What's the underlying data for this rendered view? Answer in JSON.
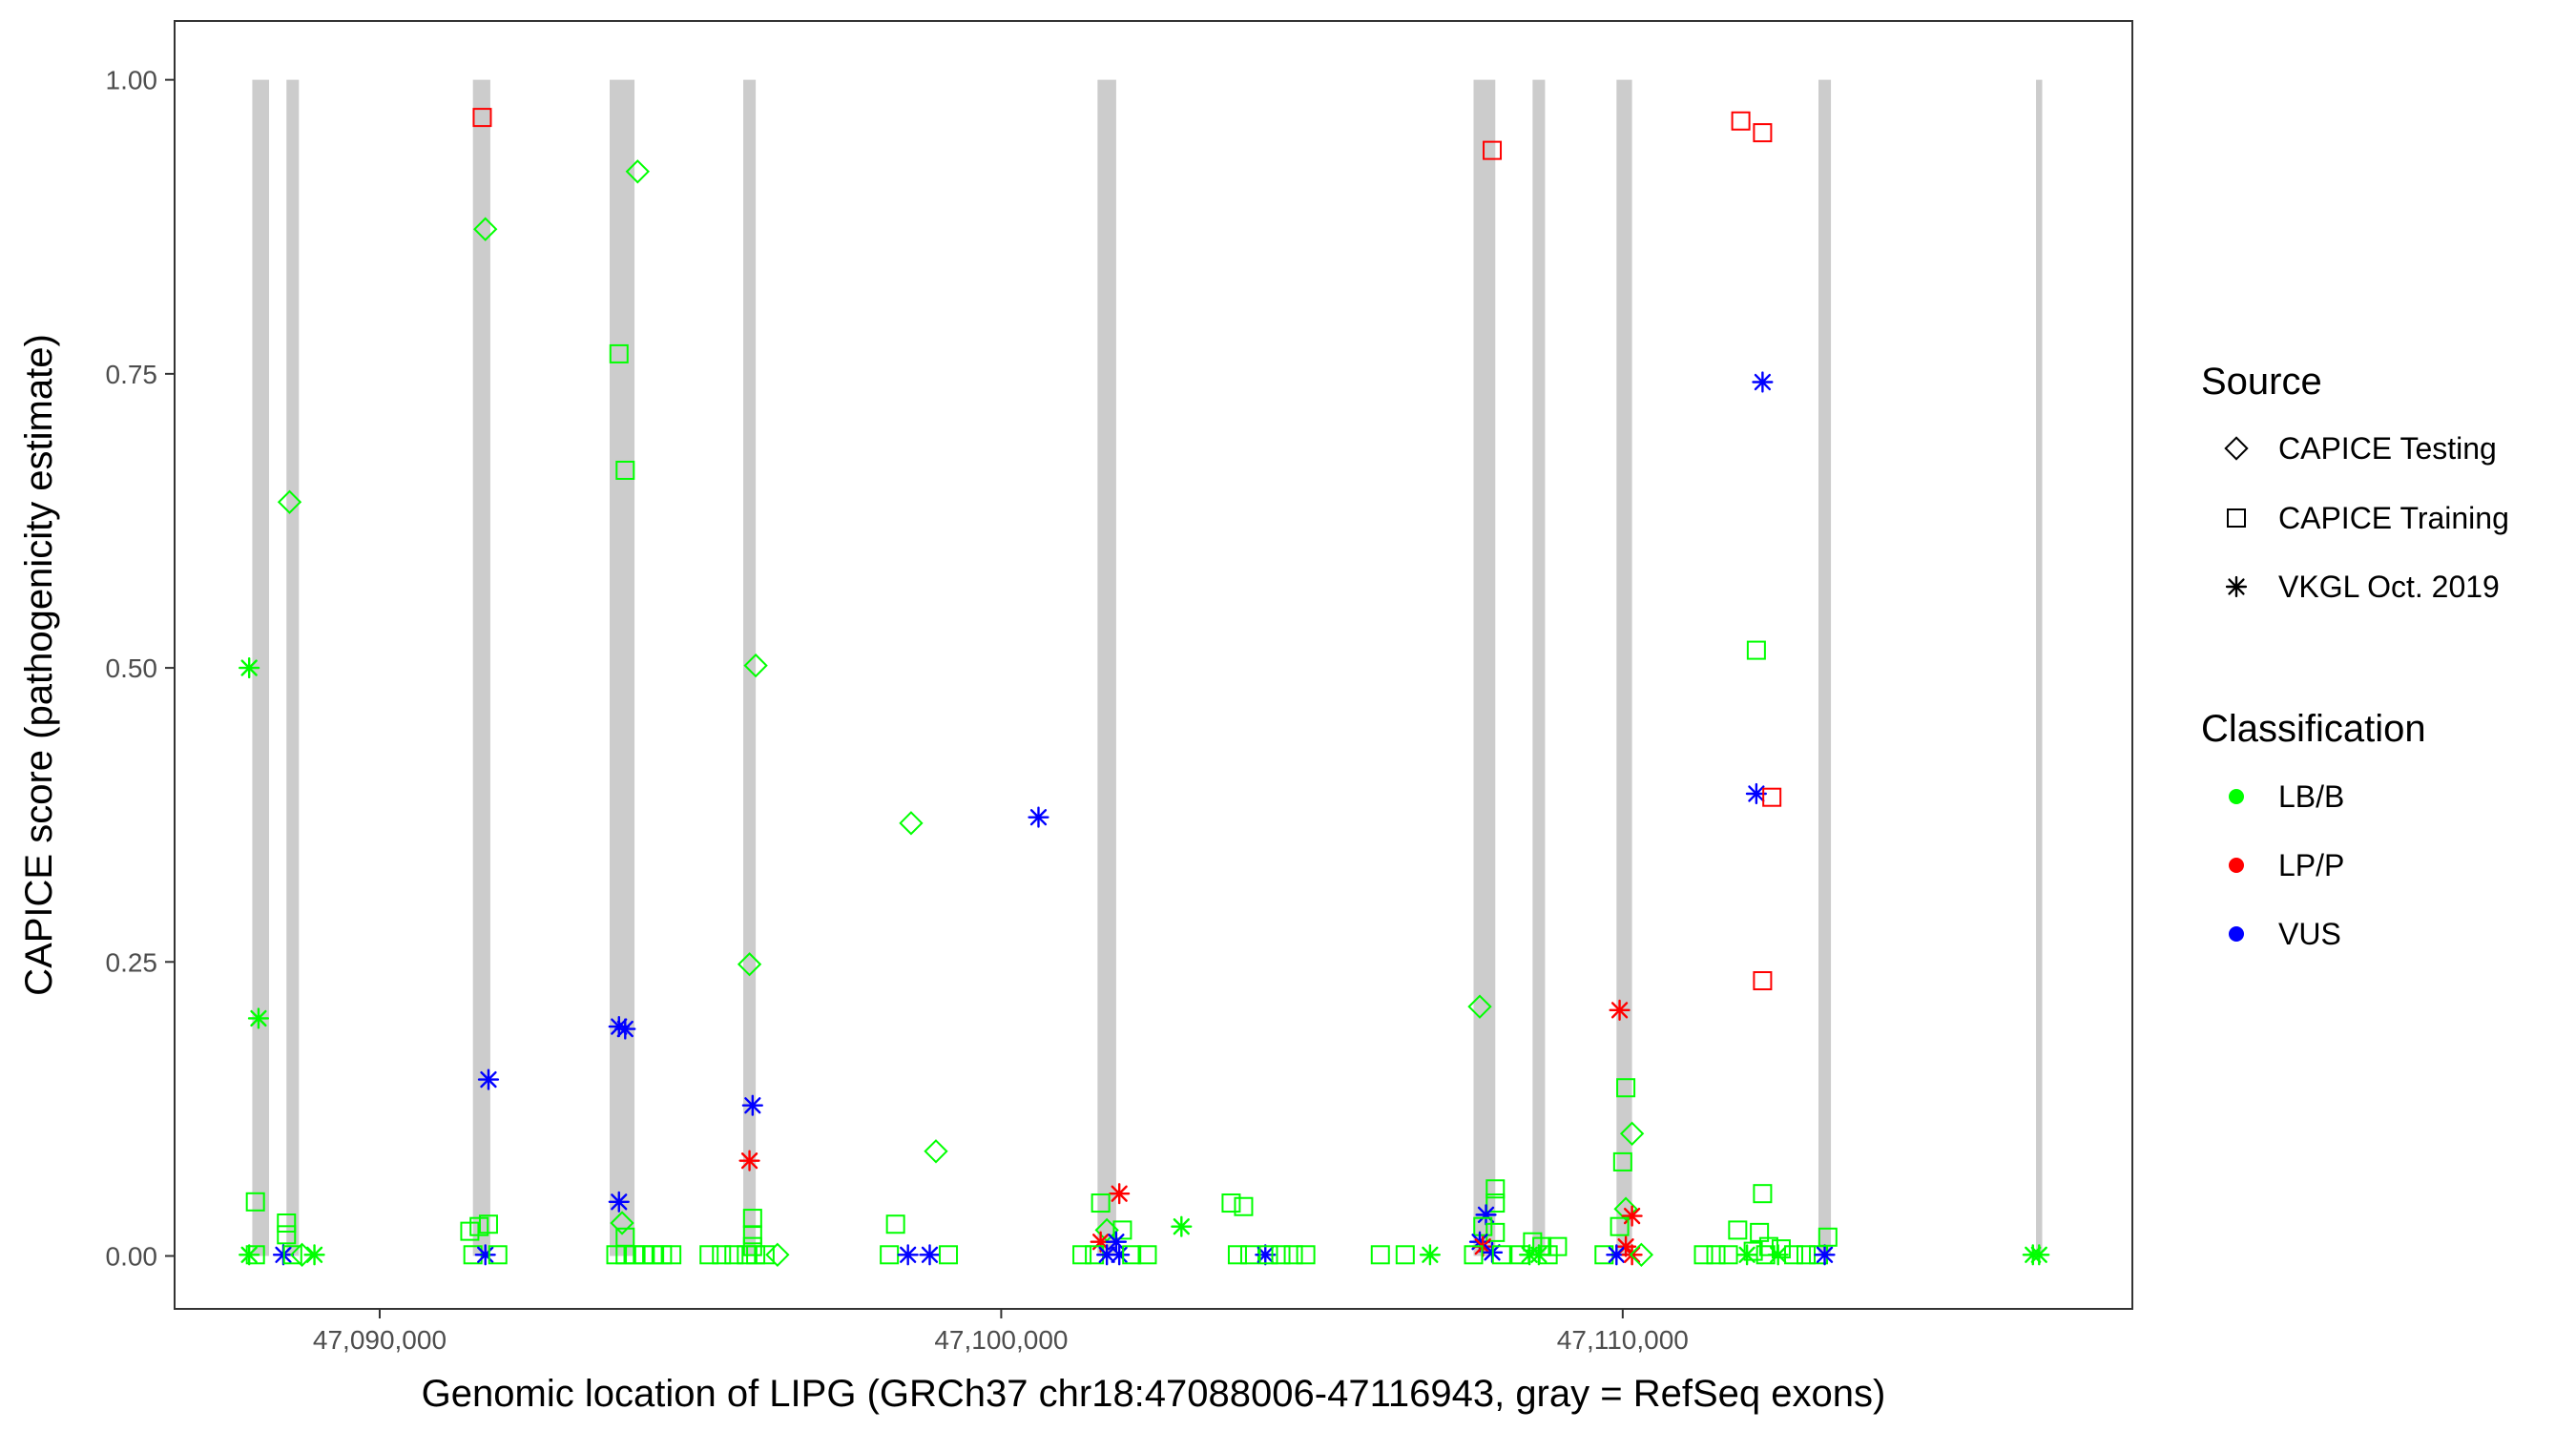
{
  "chart_data": {
    "type": "scatter",
    "xlabel": "Genomic location of LIPG (GRCh37 chr18:47088006-47116943, gray = RefSeq exons)",
    "ylabel": "CAPICE score (pathogenicity estimate)",
    "xlim": [
      47086700,
      47118200
    ],
    "ylim": [
      -0.045,
      1.05
    ],
    "x_ticks": [
      47090000,
      47100000,
      47110000
    ],
    "x_tick_labels": [
      "47,090,000",
      "47,100,000",
      "47,110,000"
    ],
    "y_ticks": [
      0,
      0.25,
      0.5,
      0.75,
      1.0
    ],
    "y_tick_labels": [
      "0.00",
      "0.25",
      "0.50",
      "0.75",
      "1.00"
    ],
    "grid": false,
    "legend_placement": "right",
    "exons": [
      [
        47087950,
        47088220
      ],
      [
        47088500,
        47088700
      ],
      [
        47091500,
        47091780
      ],
      [
        47093700,
        47094100
      ],
      [
        47095850,
        47096050
      ],
      [
        47101550,
        47101850
      ],
      [
        47107600,
        47107950
      ],
      [
        47108550,
        47108750
      ],
      [
        47109900,
        47110150
      ],
      [
        47113150,
        47113350
      ],
      [
        47116650,
        47116750
      ]
    ],
    "legends": {
      "source": {
        "title": "Source",
        "entries": [
          {
            "label": "CAPICE Testing",
            "shape": "diamond"
          },
          {
            "label": "CAPICE Training",
            "shape": "square"
          },
          {
            "label": "VKGL Oct. 2019",
            "shape": "asterisk"
          }
        ]
      },
      "classification": {
        "title": "Classification",
        "entries": [
          {
            "label": "LB/B",
            "color": "#00ff00"
          },
          {
            "label": "LP/P",
            "color": "#ff0000"
          },
          {
            "label": "VUS",
            "color": "#0000ff"
          }
        ]
      }
    },
    "colors": {
      "LB/B": "#00ff00",
      "LP/P": "#ff0000",
      "VUS": "#0000ff"
    },
    "points": [
      {
        "x": 47087900,
        "y": 0.5,
        "shape": "asterisk",
        "cls": "LB/B"
      },
      {
        "x": 47088050,
        "y": 0.202,
        "shape": "asterisk",
        "cls": "LB/B"
      },
      {
        "x": 47088000,
        "y": 0.046,
        "shape": "square",
        "cls": "LB/B"
      },
      {
        "x": 47087900,
        "y": 0.001,
        "shape": "asterisk",
        "cls": "LB/B"
      },
      {
        "x": 47088000,
        "y": 0.001,
        "shape": "square",
        "cls": "LB/B"
      },
      {
        "x": 47088550,
        "y": 0.641,
        "shape": "diamond",
        "cls": "LB/B"
      },
      {
        "x": 47088500,
        "y": 0.028,
        "shape": "square",
        "cls": "LB/B"
      },
      {
        "x": 47088500,
        "y": 0.018,
        "shape": "square",
        "cls": "LB/B"
      },
      {
        "x": 47088450,
        "y": 0.001,
        "shape": "asterisk",
        "cls": "VUS"
      },
      {
        "x": 47088600,
        "y": 0.001,
        "shape": "square",
        "cls": "LB/B"
      },
      {
        "x": 47088750,
        "y": 0.001,
        "shape": "diamond",
        "cls": "LB/B"
      },
      {
        "x": 47088950,
        "y": 0.001,
        "shape": "asterisk",
        "cls": "LB/B"
      },
      {
        "x": 47091650,
        "y": 0.968,
        "shape": "square",
        "cls": "LP/P"
      },
      {
        "x": 47091700,
        "y": 0.873,
        "shape": "diamond",
        "cls": "LB/B"
      },
      {
        "x": 47091750,
        "y": 0.15,
        "shape": "asterisk",
        "cls": "VUS"
      },
      {
        "x": 47091450,
        "y": 0.021,
        "shape": "square",
        "cls": "LB/B"
      },
      {
        "x": 47091600,
        "y": 0.025,
        "shape": "square",
        "cls": "LB/B"
      },
      {
        "x": 47091750,
        "y": 0.027,
        "shape": "square",
        "cls": "LB/B"
      },
      {
        "x": 47091500,
        "y": 0.001,
        "shape": "square",
        "cls": "LB/B"
      },
      {
        "x": 47091700,
        "y": 0.001,
        "shape": "asterisk",
        "cls": "VUS"
      },
      {
        "x": 47091900,
        "y": 0.001,
        "shape": "square",
        "cls": "LB/B"
      },
      {
        "x": 47094150,
        "y": 0.922,
        "shape": "diamond",
        "cls": "LB/B"
      },
      {
        "x": 47093850,
        "y": 0.767,
        "shape": "square",
        "cls": "LB/B"
      },
      {
        "x": 47093950,
        "y": 0.668,
        "shape": "square",
        "cls": "LB/B"
      },
      {
        "x": 47093850,
        "y": 0.195,
        "shape": "asterisk",
        "cls": "VUS"
      },
      {
        "x": 47093950,
        "y": 0.193,
        "shape": "asterisk",
        "cls": "VUS"
      },
      {
        "x": 47093850,
        "y": 0.046,
        "shape": "asterisk",
        "cls": "VUS"
      },
      {
        "x": 47093900,
        "y": 0.028,
        "shape": "diamond",
        "cls": "LB/B"
      },
      {
        "x": 47093950,
        "y": 0.016,
        "shape": "square",
        "cls": "LB/B"
      },
      {
        "x": 47093800,
        "y": 0.001,
        "shape": "square",
        "cls": "LB/B"
      },
      {
        "x": 47093950,
        "y": 0.001,
        "shape": "square",
        "cls": "LB/B"
      },
      {
        "x": 47094100,
        "y": 0.001,
        "shape": "square",
        "cls": "LB/B"
      },
      {
        "x": 47094250,
        "y": 0.001,
        "shape": "square",
        "cls": "LB/B"
      },
      {
        "x": 47094400,
        "y": 0.001,
        "shape": "square",
        "cls": "LB/B"
      },
      {
        "x": 47094550,
        "y": 0.001,
        "shape": "square",
        "cls": "LB/B"
      },
      {
        "x": 47094700,
        "y": 0.001,
        "shape": "square",
        "cls": "LB/B"
      },
      {
        "x": 47096050,
        "y": 0.502,
        "shape": "diamond",
        "cls": "LB/B"
      },
      {
        "x": 47095950,
        "y": 0.248,
        "shape": "diamond",
        "cls": "LB/B"
      },
      {
        "x": 47096000,
        "y": 0.128,
        "shape": "asterisk",
        "cls": "VUS"
      },
      {
        "x": 47095950,
        "y": 0.081,
        "shape": "asterisk",
        "cls": "LP/P"
      },
      {
        "x": 47096000,
        "y": 0.032,
        "shape": "square",
        "cls": "LB/B"
      },
      {
        "x": 47096000,
        "y": 0.018,
        "shape": "square",
        "cls": "LB/B"
      },
      {
        "x": 47096000,
        "y": 0.008,
        "shape": "square",
        "cls": "LB/B"
      },
      {
        "x": 47095300,
        "y": 0.001,
        "shape": "square",
        "cls": "LB/B"
      },
      {
        "x": 47095500,
        "y": 0.001,
        "shape": "square",
        "cls": "LB/B"
      },
      {
        "x": 47095700,
        "y": 0.001,
        "shape": "square",
        "cls": "LB/B"
      },
      {
        "x": 47095900,
        "y": 0.001,
        "shape": "square",
        "cls": "LB/B"
      },
      {
        "x": 47096050,
        "y": 0.001,
        "shape": "square",
        "cls": "LB/B"
      },
      {
        "x": 47096200,
        "y": 0.001,
        "shape": "square",
        "cls": "LB/B"
      },
      {
        "x": 47096400,
        "y": 0.001,
        "shape": "diamond",
        "cls": "LB/B"
      },
      {
        "x": 47098550,
        "y": 0.368,
        "shape": "diamond",
        "cls": "LB/B"
      },
      {
        "x": 47098950,
        "y": 0.089,
        "shape": "diamond",
        "cls": "LB/B"
      },
      {
        "x": 47098300,
        "y": 0.027,
        "shape": "square",
        "cls": "LB/B"
      },
      {
        "x": 47098200,
        "y": 0.001,
        "shape": "square",
        "cls": "LB/B"
      },
      {
        "x": 47098500,
        "y": 0.001,
        "shape": "asterisk",
        "cls": "VUS"
      },
      {
        "x": 47098850,
        "y": 0.001,
        "shape": "asterisk",
        "cls": "VUS"
      },
      {
        "x": 47099150,
        "y": 0.001,
        "shape": "square",
        "cls": "LB/B"
      },
      {
        "x": 47100600,
        "y": 0.373,
        "shape": "asterisk",
        "cls": "VUS"
      },
      {
        "x": 47101900,
        "y": 0.053,
        "shape": "asterisk",
        "cls": "LP/P"
      },
      {
        "x": 47101600,
        "y": 0.045,
        "shape": "square",
        "cls": "LB/B"
      },
      {
        "x": 47101700,
        "y": 0.022,
        "shape": "diamond",
        "cls": "LB/B"
      },
      {
        "x": 47101950,
        "y": 0.022,
        "shape": "square",
        "cls": "LB/B"
      },
      {
        "x": 47101600,
        "y": 0.012,
        "shape": "asterisk",
        "cls": "LP/P"
      },
      {
        "x": 47101850,
        "y": 0.012,
        "shape": "asterisk",
        "cls": "VUS"
      },
      {
        "x": 47101300,
        "y": 0.001,
        "shape": "square",
        "cls": "LB/B"
      },
      {
        "x": 47101500,
        "y": 0.001,
        "shape": "square",
        "cls": "LB/B"
      },
      {
        "x": 47101700,
        "y": 0.001,
        "shape": "asterisk",
        "cls": "VUS"
      },
      {
        "x": 47101900,
        "y": 0.001,
        "shape": "asterisk",
        "cls": "VUS"
      },
      {
        "x": 47102100,
        "y": 0.001,
        "shape": "square",
        "cls": "LB/B"
      },
      {
        "x": 47102350,
        "y": 0.001,
        "shape": "square",
        "cls": "LB/B"
      },
      {
        "x": 47102900,
        "y": 0.025,
        "shape": "asterisk",
        "cls": "LB/B"
      },
      {
        "x": 47103700,
        "y": 0.045,
        "shape": "square",
        "cls": "LB/B"
      },
      {
        "x": 47103900,
        "y": 0.042,
        "shape": "square",
        "cls": "LB/B"
      },
      {
        "x": 47103800,
        "y": 0.001,
        "shape": "square",
        "cls": "LB/B"
      },
      {
        "x": 47104000,
        "y": 0.001,
        "shape": "square",
        "cls": "LB/B"
      },
      {
        "x": 47104250,
        "y": 0.001,
        "shape": "asterisk",
        "cls": "VUS"
      },
      {
        "x": 47104300,
        "y": 0.001,
        "shape": "square",
        "cls": "LB/B"
      },
      {
        "x": 47104500,
        "y": 0.001,
        "shape": "square",
        "cls": "LB/B"
      },
      {
        "x": 47104700,
        "y": 0.001,
        "shape": "square",
        "cls": "LB/B"
      },
      {
        "x": 47104900,
        "y": 0.001,
        "shape": "square",
        "cls": "LB/B"
      },
      {
        "x": 47106100,
        "y": 0.001,
        "shape": "square",
        "cls": "LB/B"
      },
      {
        "x": 47106500,
        "y": 0.001,
        "shape": "square",
        "cls": "LB/B"
      },
      {
        "x": 47106900,
        "y": 0.001,
        "shape": "asterisk",
        "cls": "LB/B"
      },
      {
        "x": 47107700,
        "y": 0.212,
        "shape": "diamond",
        "cls": "LB/B"
      },
      {
        "x": 47107900,
        "y": 0.94,
        "shape": "square",
        "cls": "LP/P"
      },
      {
        "x": 47107950,
        "y": 0.057,
        "shape": "square",
        "cls": "LB/B"
      },
      {
        "x": 47107950,
        "y": 0.045,
        "shape": "square",
        "cls": "LB/B"
      },
      {
        "x": 47107800,
        "y": 0.035,
        "shape": "asterisk",
        "cls": "VUS"
      },
      {
        "x": 47107750,
        "y": 0.025,
        "shape": "square",
        "cls": "LB/B"
      },
      {
        "x": 47107950,
        "y": 0.02,
        "shape": "square",
        "cls": "LB/B"
      },
      {
        "x": 47107700,
        "y": 0.012,
        "shape": "asterisk",
        "cls": "VUS"
      },
      {
        "x": 47107750,
        "y": 0.008,
        "shape": "asterisk",
        "cls": "LP/P"
      },
      {
        "x": 47107900,
        "y": 0.003,
        "shape": "asterisk",
        "cls": "VUS"
      },
      {
        "x": 47107600,
        "y": 0.001,
        "shape": "square",
        "cls": "LB/B"
      },
      {
        "x": 47108050,
        "y": 0.001,
        "shape": "square",
        "cls": "LB/B"
      },
      {
        "x": 47108550,
        "y": 0.012,
        "shape": "square",
        "cls": "LB/B"
      },
      {
        "x": 47108700,
        "y": 0.008,
        "shape": "square",
        "cls": "LB/B"
      },
      {
        "x": 47108950,
        "y": 0.008,
        "shape": "square",
        "cls": "LB/B"
      },
      {
        "x": 47108350,
        "y": 0.001,
        "shape": "square",
        "cls": "LB/B"
      },
      {
        "x": 47108500,
        "y": 0.001,
        "shape": "asterisk",
        "cls": "LB/B"
      },
      {
        "x": 47108650,
        "y": 0.001,
        "shape": "asterisk",
        "cls": "LB/B"
      },
      {
        "x": 47108800,
        "y": 0.001,
        "shape": "square",
        "cls": "LB/B"
      },
      {
        "x": 47109950,
        "y": 0.209,
        "shape": "asterisk",
        "cls": "LP/P"
      },
      {
        "x": 47110050,
        "y": 0.143,
        "shape": "square",
        "cls": "LB/B"
      },
      {
        "x": 47110150,
        "y": 0.104,
        "shape": "diamond",
        "cls": "LB/B"
      },
      {
        "x": 47110000,
        "y": 0.08,
        "shape": "square",
        "cls": "LB/B"
      },
      {
        "x": 47110050,
        "y": 0.04,
        "shape": "diamond",
        "cls": "LB/B"
      },
      {
        "x": 47110150,
        "y": 0.034,
        "shape": "asterisk",
        "cls": "LP/P"
      },
      {
        "x": 47109950,
        "y": 0.025,
        "shape": "square",
        "cls": "LB/B"
      },
      {
        "x": 47110050,
        "y": 0.008,
        "shape": "asterisk",
        "cls": "LP/P"
      },
      {
        "x": 47109700,
        "y": 0.001,
        "shape": "square",
        "cls": "LB/B"
      },
      {
        "x": 47109900,
        "y": 0.001,
        "shape": "asterisk",
        "cls": "VUS"
      },
      {
        "x": 47110150,
        "y": 0.001,
        "shape": "asterisk",
        "cls": "LP/P"
      },
      {
        "x": 47110300,
        "y": 0.001,
        "shape": "diamond",
        "cls": "LB/B"
      },
      {
        "x": 47111900,
        "y": 0.965,
        "shape": "square",
        "cls": "LP/P"
      },
      {
        "x": 47112250,
        "y": 0.955,
        "shape": "square",
        "cls": "LP/P"
      },
      {
        "x": 47112250,
        "y": 0.743,
        "shape": "asterisk",
        "cls": "VUS"
      },
      {
        "x": 47112150,
        "y": 0.515,
        "shape": "square",
        "cls": "LB/B"
      },
      {
        "x": 47112150,
        "y": 0.393,
        "shape": "asterisk",
        "cls": "VUS"
      },
      {
        "x": 47112400,
        "y": 0.39,
        "shape": "square",
        "cls": "LP/P"
      },
      {
        "x": 47112250,
        "y": 0.234,
        "shape": "square",
        "cls": "LP/P"
      },
      {
        "x": 47112250,
        "y": 0.053,
        "shape": "square",
        "cls": "LB/B"
      },
      {
        "x": 47111850,
        "y": 0.022,
        "shape": "square",
        "cls": "LB/B"
      },
      {
        "x": 47112200,
        "y": 0.02,
        "shape": "square",
        "cls": "LB/B"
      },
      {
        "x": 47112350,
        "y": 0.008,
        "shape": "square",
        "cls": "LB/B"
      },
      {
        "x": 47112550,
        "y": 0.006,
        "shape": "square",
        "cls": "LB/B"
      },
      {
        "x": 47112100,
        "y": 0.004,
        "shape": "square",
        "cls": "LB/B"
      },
      {
        "x": 47111300,
        "y": 0.001,
        "shape": "square",
        "cls": "LB/B"
      },
      {
        "x": 47111500,
        "y": 0.001,
        "shape": "square",
        "cls": "LB/B"
      },
      {
        "x": 47111700,
        "y": 0.001,
        "shape": "square",
        "cls": "LB/B"
      },
      {
        "x": 47112000,
        "y": 0.001,
        "shape": "asterisk",
        "cls": "LB/B"
      },
      {
        "x": 47112300,
        "y": 0.001,
        "shape": "square",
        "cls": "LB/B"
      },
      {
        "x": 47112500,
        "y": 0.001,
        "shape": "asterisk",
        "cls": "LB/B"
      },
      {
        "x": 47112750,
        "y": 0.001,
        "shape": "square",
        "cls": "LB/B"
      },
      {
        "x": 47112950,
        "y": 0.001,
        "shape": "square",
        "cls": "LB/B"
      },
      {
        "x": 47113150,
        "y": 0.001,
        "shape": "square",
        "cls": "LB/B"
      },
      {
        "x": 47113250,
        "y": 0.001,
        "shape": "asterisk",
        "cls": "VUS"
      },
      {
        "x": 47113300,
        "y": 0.016,
        "shape": "square",
        "cls": "LB/B"
      },
      {
        "x": 47116600,
        "y": 0.001,
        "shape": "asterisk",
        "cls": "LB/B"
      },
      {
        "x": 47116700,
        "y": 0.001,
        "shape": "asterisk",
        "cls": "LB/B"
      }
    ]
  }
}
